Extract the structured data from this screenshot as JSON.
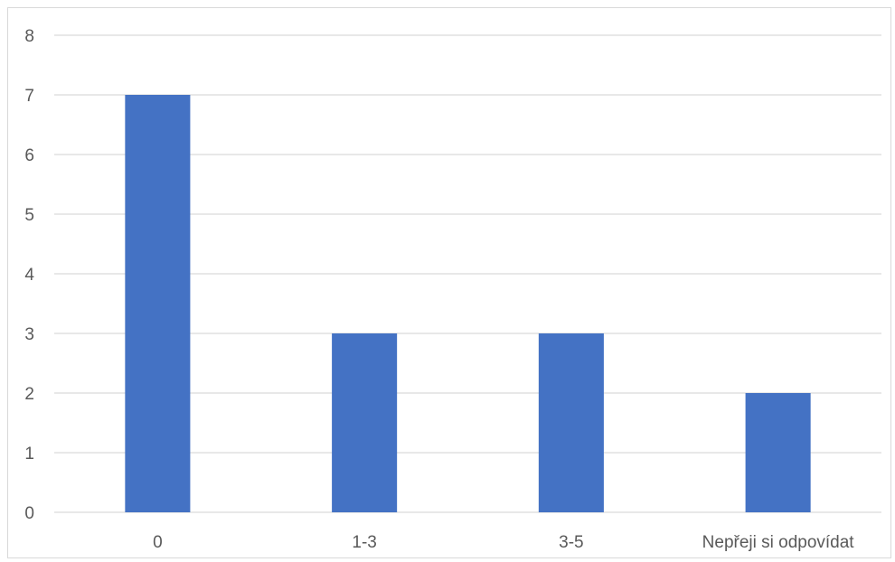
{
  "chart_data": {
    "type": "bar",
    "categories": [
      "0",
      "1-3",
      "3-5",
      "Nepřeji si odpovídat"
    ],
    "values": [
      7,
      3,
      3,
      2
    ],
    "title": "",
    "xlabel": "",
    "ylabel": "",
    "ylim": [
      0,
      8
    ],
    "yticks": [
      0,
      1,
      2,
      3,
      4,
      5,
      6,
      7,
      8
    ],
    "grid": true,
    "legend": "none",
    "bar_color": "#4472c4"
  }
}
